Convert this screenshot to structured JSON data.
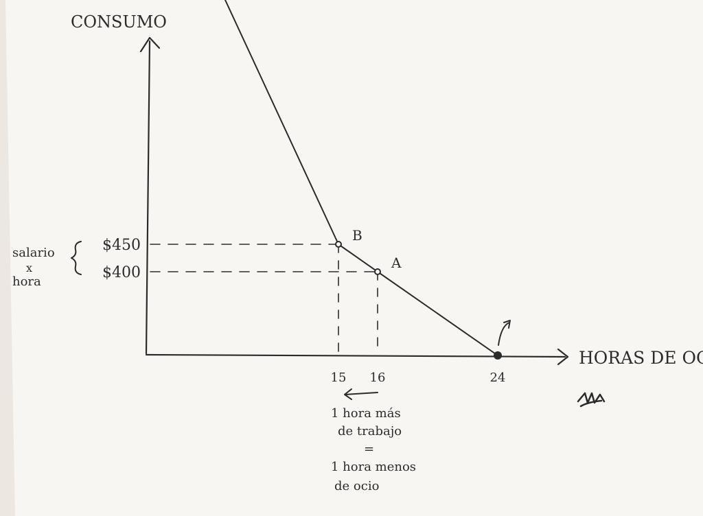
{
  "chart_data": {
    "type": "line",
    "xlabel": "HORAS DE OCIO $",
    "ylabel": "CONSUMO",
    "x_ticks": [
      "15",
      "16",
      "24"
    ],
    "y_ticks": [
      "$450",
      "$400"
    ],
    "series": [
      {
        "values": [
          {
            "x": 15,
            "y": 450
          },
          {
            "x": 16,
            "y": 400
          },
          {
            "x": 24,
            "y": 0
          }
        ]
      }
    ],
    "points": [
      {
        "label": "B",
        "x": 15,
        "y": 450
      },
      {
        "label": "A",
        "x": 16,
        "y": 400
      },
      {
        "label": "",
        "x": 24,
        "y": 0
      }
    ],
    "annotations": {
      "wage_brace_top": "salario",
      "wage_brace_mid": "x",
      "wage_brace_bottom": "hora",
      "note_line1": "1 hora más",
      "note_line2": "de trabajo",
      "note_line3": "=",
      "note_line4": "1 hora menos",
      "note_line5": "de ocio"
    },
    "colors": {
      "paper": "#f7f6f3",
      "ink": "#2b2b2b"
    }
  }
}
